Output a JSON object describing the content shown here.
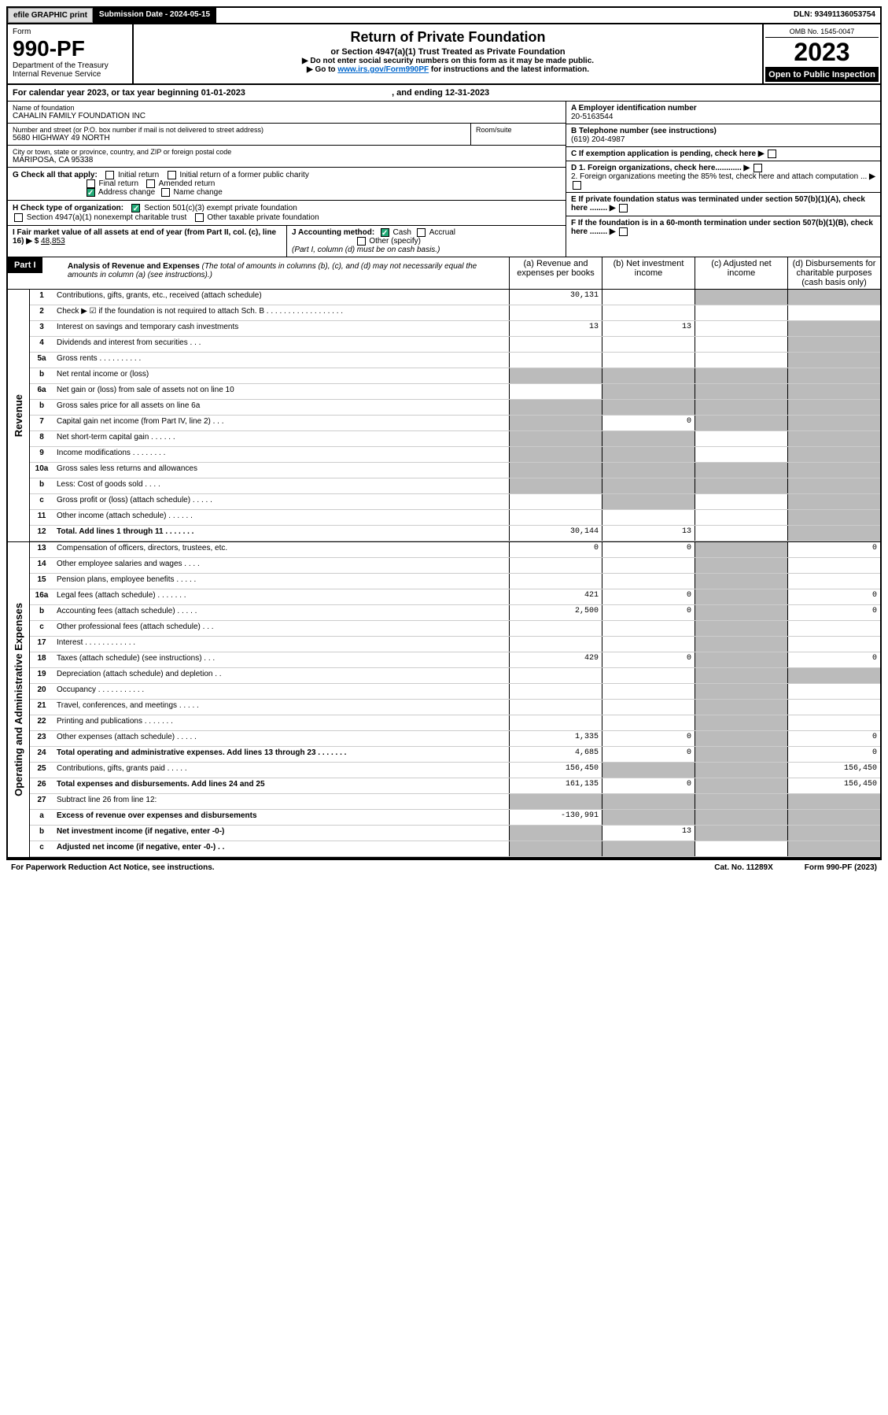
{
  "topbar": {
    "efile": "efile GRAPHIC print",
    "subDate": "Submission Date - 2024-05-15",
    "dln": "DLN: 93491136053754"
  },
  "header": {
    "formLabel": "Form",
    "formNumber": "990-PF",
    "dept": "Department of the Treasury",
    "irs": "Internal Revenue Service",
    "title": "Return of Private Foundation",
    "subtitle": "or Section 4947(a)(1) Trust Treated as Private Foundation",
    "instr1": "▶ Do not enter social security numbers on this form as it may be made public.",
    "instr2_pre": "▶ Go to ",
    "instr2_link": "www.irs.gov/Form990PF",
    "instr2_post": " for instructions and the latest information.",
    "omb": "OMB No. 1545-0047",
    "year": "2023",
    "openPublic": "Open to Public Inspection"
  },
  "calRow": {
    "pre": "For calendar year 2023, or tax year beginning ",
    "begin": "01-01-2023",
    "mid": " , and ending ",
    "end": "12-31-2023"
  },
  "foundation": {
    "nameLabel": "Name of foundation",
    "name": "CAHALIN FAMILY FOUNDATION INC",
    "addrLabel": "Number and street (or P.O. box number if mail is not delivered to street address)",
    "addr": "5680 HIGHWAY 49 NORTH",
    "roomLabel": "Room/suite",
    "cityLabel": "City or town, state or province, country, and ZIP or foreign postal code",
    "city": "MARIPOSA, CA  95338",
    "einLabel": "A Employer identification number",
    "ein": "20-5163544",
    "phoneLabel": "B Telephone number (see instructions)",
    "phone": "(619) 204-4987",
    "cLabel": "C If exemption application is pending, check here",
    "d1": "D 1. Foreign organizations, check here............",
    "d2": "2. Foreign organizations meeting the 85% test, check here and attach computation ...",
    "e": "E If private foundation status was terminated under section 507(b)(1)(A), check here ........",
    "f": "F If the foundation is in a 60-month termination under section 507(b)(1)(B), check here ........"
  },
  "checks": {
    "gLabel": "G Check all that apply:",
    "initial": "Initial return",
    "initialFormer": "Initial return of a former public charity",
    "final": "Final return",
    "amended": "Amended return",
    "address": "Address change",
    "name": "Name change",
    "hLabel": "H Check type of organization:",
    "h1": "Section 501(c)(3) exempt private foundation",
    "h2": "Section 4947(a)(1) nonexempt charitable trust",
    "h3": "Other taxable private foundation",
    "iLabel": "I Fair market value of all assets at end of year (from Part II, col. (c), line 16) ▶ $",
    "iValue": "48,853",
    "jLabel": "J Accounting method:",
    "cash": "Cash",
    "accrual": "Accrual",
    "other": "Other (specify)",
    "jNote": "(Part I, column (d) must be on cash basis.)"
  },
  "part1": {
    "label": "Part I",
    "titleBold": "Analysis of Revenue and Expenses",
    "titleItalic": " (The total of amounts in columns (b), (c), and (d) may not necessarily equal the amounts in column (a) (see instructions).)",
    "colA": "(a) Revenue and expenses per books",
    "colB": "(b) Net investment income",
    "colC": "(c) Adjusted net income",
    "colD": "(d) Disbursements for charitable purposes (cash basis only)"
  },
  "sideLabels": {
    "revenue": "Revenue",
    "expenses": "Operating and Administrative Expenses"
  },
  "rows": [
    {
      "num": "1",
      "desc": "Contributions, gifts, grants, etc., received (attach schedule)",
      "a": "30,131",
      "b": "",
      "c": "grey",
      "d": "grey"
    },
    {
      "num": "2",
      "desc": "Check ▶ ☑ if the foundation is not required to attach Sch. B  . . . . . . . . . . . . . . . . . .",
      "a": "",
      "b": "",
      "c": "",
      "d": "",
      "noVals": true
    },
    {
      "num": "3",
      "desc": "Interest on savings and temporary cash investments",
      "a": "13",
      "b": "13",
      "c": "",
      "d": "grey"
    },
    {
      "num": "4",
      "desc": "Dividends and interest from securities  .  .  .",
      "a": "",
      "b": "",
      "c": "",
      "d": "grey"
    },
    {
      "num": "5a",
      "desc": "Gross rents  .  .  .  .  .  .  .  .  .  .",
      "a": "",
      "b": "",
      "c": "",
      "d": "grey"
    },
    {
      "num": "b",
      "desc": "Net rental income or (loss)",
      "a": "grey",
      "b": "grey",
      "c": "grey",
      "d": "grey"
    },
    {
      "num": "6a",
      "desc": "Net gain or (loss) from sale of assets not on line 10",
      "a": "",
      "b": "grey",
      "c": "grey",
      "d": "grey"
    },
    {
      "num": "b",
      "desc": "Gross sales price for all assets on line 6a",
      "a": "grey",
      "b": "grey",
      "c": "grey",
      "d": "grey"
    },
    {
      "num": "7",
      "desc": "Capital gain net income (from Part IV, line 2)  .  .  .",
      "a": "grey",
      "b": "0",
      "c": "grey",
      "d": "grey"
    },
    {
      "num": "8",
      "desc": "Net short-term capital gain  .  .  .  .  .  .",
      "a": "grey",
      "b": "grey",
      "c": "",
      "d": "grey"
    },
    {
      "num": "9",
      "desc": "Income modifications  .  .  .  .  .  .  .  .",
      "a": "grey",
      "b": "grey",
      "c": "",
      "d": "grey"
    },
    {
      "num": "10a",
      "desc": "Gross sales less returns and allowances",
      "a": "grey",
      "b": "grey",
      "c": "grey",
      "d": "grey"
    },
    {
      "num": "b",
      "desc": "Less: Cost of goods sold  .  .  .  .",
      "a": "grey",
      "b": "grey",
      "c": "grey",
      "d": "grey"
    },
    {
      "num": "c",
      "desc": "Gross profit or (loss) (attach schedule)  .  .  .  .  .",
      "a": "",
      "b": "grey",
      "c": "",
      "d": "grey"
    },
    {
      "num": "11",
      "desc": "Other income (attach schedule)  .  .  .  .  .  .",
      "a": "",
      "b": "",
      "c": "",
      "d": "grey"
    },
    {
      "num": "12",
      "desc": "Total. Add lines 1 through 11  .  .  .  .  .  .  .",
      "a": "30,144",
      "b": "13",
      "c": "",
      "d": "grey",
      "bold": true
    }
  ],
  "expRows": [
    {
      "num": "13",
      "desc": "Compensation of officers, directors, trustees, etc.",
      "a": "0",
      "b": "0",
      "c": "grey",
      "d": "0"
    },
    {
      "num": "14",
      "desc": "Other employee salaries and wages  .  .  .  .",
      "a": "",
      "b": "",
      "c": "grey",
      "d": ""
    },
    {
      "num": "15",
      "desc": "Pension plans, employee benefits  .  .  .  .  .",
      "a": "",
      "b": "",
      "c": "grey",
      "d": ""
    },
    {
      "num": "16a",
      "desc": "Legal fees (attach schedule)  .  .  .  .  .  .  .",
      "a": "421",
      "b": "0",
      "c": "grey",
      "d": "0"
    },
    {
      "num": "b",
      "desc": "Accounting fees (attach schedule)  .  .  .  .  .",
      "a": "2,500",
      "b": "0",
      "c": "grey",
      "d": "0"
    },
    {
      "num": "c",
      "desc": "Other professional fees (attach schedule)  .  .  .",
      "a": "",
      "b": "",
      "c": "grey",
      "d": ""
    },
    {
      "num": "17",
      "desc": "Interest  .  .  .  .  .  .  .  .  .  .  .  .",
      "a": "",
      "b": "",
      "c": "grey",
      "d": ""
    },
    {
      "num": "18",
      "desc": "Taxes (attach schedule) (see instructions)  .  .  .",
      "a": "429",
      "b": "0",
      "c": "grey",
      "d": "0"
    },
    {
      "num": "19",
      "desc": "Depreciation (attach schedule) and depletion  .  .",
      "a": "",
      "b": "",
      "c": "grey",
      "d": "grey"
    },
    {
      "num": "20",
      "desc": "Occupancy  .  .  .  .  .  .  .  .  .  .  .",
      "a": "",
      "b": "",
      "c": "grey",
      "d": ""
    },
    {
      "num": "21",
      "desc": "Travel, conferences, and meetings  .  .  .  .  .",
      "a": "",
      "b": "",
      "c": "grey",
      "d": ""
    },
    {
      "num": "22",
      "desc": "Printing and publications  .  .  .  .  .  .  .",
      "a": "",
      "b": "",
      "c": "grey",
      "d": ""
    },
    {
      "num": "23",
      "desc": "Other expenses (attach schedule)  .  .  .  .  .",
      "a": "1,335",
      "b": "0",
      "c": "grey",
      "d": "0"
    },
    {
      "num": "24",
      "desc": "Total operating and administrative expenses. Add lines 13 through 23  .  .  .  .  .  .  .",
      "a": "4,685",
      "b": "0",
      "c": "grey",
      "d": "0",
      "bold": true
    },
    {
      "num": "25",
      "desc": "Contributions, gifts, grants paid  .  .  .  .  .",
      "a": "156,450",
      "b": "grey",
      "c": "grey",
      "d": "156,450"
    },
    {
      "num": "26",
      "desc": "Total expenses and disbursements. Add lines 24 and 25",
      "a": "161,135",
      "b": "0",
      "c": "grey",
      "d": "156,450",
      "bold": true
    },
    {
      "num": "27",
      "desc": "Subtract line 26 from line 12:",
      "a": "grey",
      "b": "grey",
      "c": "grey",
      "d": "grey"
    },
    {
      "num": "a",
      "desc": "Excess of revenue over expenses and disbursements",
      "a": "-130,991",
      "b": "grey",
      "c": "grey",
      "d": "grey",
      "bold": true
    },
    {
      "num": "b",
      "desc": "Net investment income (if negative, enter -0-)",
      "a": "grey",
      "b": "13",
      "c": "grey",
      "d": "grey",
      "bold": true
    },
    {
      "num": "c",
      "desc": "Adjusted net income (if negative, enter -0-)  .  .",
      "a": "grey",
      "b": "grey",
      "c": "",
      "d": "grey",
      "bold": true
    }
  ],
  "footer": {
    "left": "For Paperwork Reduction Act Notice, see instructions.",
    "mid": "Cat. No. 11289X",
    "right": "Form 990-PF (2023)"
  }
}
